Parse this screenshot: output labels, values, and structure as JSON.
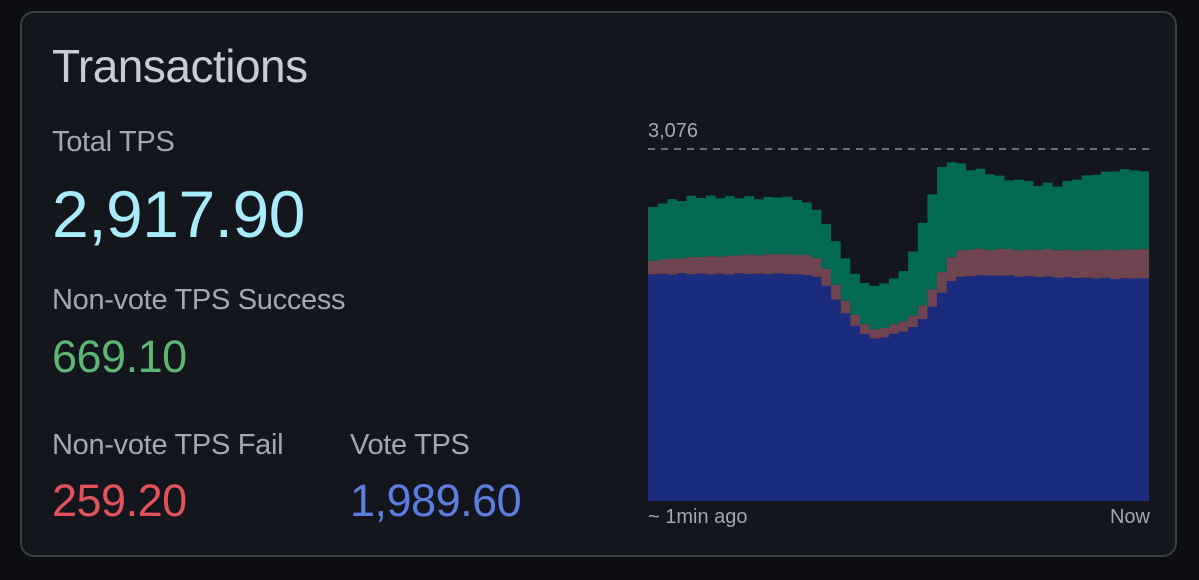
{
  "card": {
    "title": "Transactions"
  },
  "metrics": {
    "total": {
      "label": "Total TPS",
      "value": "2,917.90",
      "color": "#a8ecfb"
    },
    "nonvote_success": {
      "label": "Non-vote TPS Success",
      "value": "669.10",
      "color": "#5bb771"
    },
    "nonvote_fail": {
      "label": "Non-vote TPS Fail",
      "value": "259.20",
      "color": "#e2535a"
    },
    "vote": {
      "label": "Vote TPS",
      "value": "1,989.60",
      "color": "#5b7fe0"
    }
  },
  "chart_data": {
    "type": "area",
    "stacked": true,
    "max_label": "3,076",
    "ylim": [
      0,
      3076
    ],
    "x_labels": {
      "start": "~ 1min ago",
      "end": "Now"
    },
    "reference_line": {
      "value": 3076,
      "style": "dashed"
    },
    "series": [
      {
        "key": "vote",
        "color": "#1b2b7e",
        "values": [
          1980,
          1985,
          1978,
          1990,
          1982,
          1988,
          1980,
          1986,
          1979,
          1990,
          1984,
          1987,
          1981,
          1989,
          1983,
          1980,
          1975,
          1960,
          1880,
          1760,
          1640,
          1530,
          1460,
          1420,
          1430,
          1460,
          1480,
          1520,
          1590,
          1700,
          1820,
          1920,
          1960,
          1965,
          1975,
          1970,
          1968,
          1972,
          1960,
          1965,
          1958,
          1962,
          1950,
          1955,
          1948,
          1952,
          1945,
          1950,
          1940,
          1948,
          1945,
          1946
        ]
      },
      {
        "key": "nonvote_fail",
        "color": "#6e4451",
        "values": [
          120,
          125,
          140,
          130,
          150,
          145,
          160,
          150,
          165,
          155,
          170,
          160,
          175,
          168,
          172,
          170,
          175,
          165,
          150,
          130,
          110,
          95,
          85,
          80,
          82,
          85,
          90,
          100,
          120,
          150,
          180,
          210,
          230,
          235,
          230,
          225,
          235,
          230,
          228,
          232,
          236,
          240,
          238,
          242,
          240,
          244,
          246,
          248,
          250,
          252,
          254,
          255
        ]
      },
      {
        "key": "nonvote_success",
        "color": "#026a52",
        "values": [
          470,
          490,
          520,
          500,
          535,
          515,
          530,
          510,
          520,
          500,
          510,
          490,
          500,
          495,
          505,
          480,
          460,
          420,
          390,
          380,
          370,
          360,
          360,
          380,
          390,
          400,
          440,
          560,
          720,
          830,
          920,
          830,
          760,
          690,
          700,
          660,
          640,
          600,
          620,
          600,
          560,
          580,
          560,
          600,
          620,
          650,
          660,
          680,
          690,
          700,
          690,
          680
        ]
      }
    ]
  }
}
